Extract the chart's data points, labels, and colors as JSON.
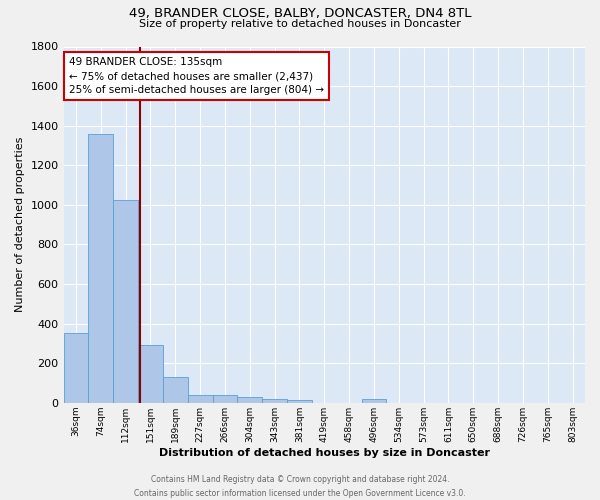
{
  "title1": "49, BRANDER CLOSE, BALBY, DONCASTER, DN4 8TL",
  "title2": "Size of property relative to detached houses in Doncaster",
  "xlabel": "Distribution of detached houses by size in Doncaster",
  "ylabel": "Number of detached properties",
  "footer1": "Contains HM Land Registry data © Crown copyright and database right 2024.",
  "footer2": "Contains public sector information licensed under the Open Government Licence v3.0.",
  "bin_labels": [
    "36sqm",
    "74sqm",
    "112sqm",
    "151sqm",
    "189sqm",
    "227sqm",
    "266sqm",
    "304sqm",
    "343sqm",
    "381sqm",
    "419sqm",
    "458sqm",
    "496sqm",
    "534sqm",
    "573sqm",
    "611sqm",
    "650sqm",
    "688sqm",
    "726sqm",
    "765sqm",
    "803sqm"
  ],
  "bar_values": [
    352,
    1356,
    1022,
    291,
    130,
    40,
    38,
    30,
    18,
    15,
    0,
    0,
    18,
    0,
    0,
    0,
    0,
    0,
    0,
    0,
    0
  ],
  "bar_color": "#aec6e8",
  "bar_edge_color": "#5a9fd4",
  "background_color": "#dce8f5",
  "grid_color": "#ffffff",
  "property_line_color": "#8b0000",
  "annotation_line1": "49 BRANDER CLOSE: 135sqm",
  "annotation_line2": "← 75% of detached houses are smaller (2,437)",
  "annotation_line3": "25% of semi-detached houses are larger (804) →",
  "annotation_box_color": "#ffffff",
  "annotation_box_edge": "#cc0000",
  "ylim": [
    0,
    1800
  ],
  "yticks": [
    0,
    200,
    400,
    600,
    800,
    1000,
    1200,
    1400,
    1600,
    1800
  ],
  "bin_edges": [
    36,
    74,
    112,
    151,
    189,
    227,
    266,
    304,
    343,
    381,
    419,
    458,
    496,
    534,
    573,
    611,
    650,
    688,
    726,
    765,
    803
  ],
  "property_sqm": 135
}
